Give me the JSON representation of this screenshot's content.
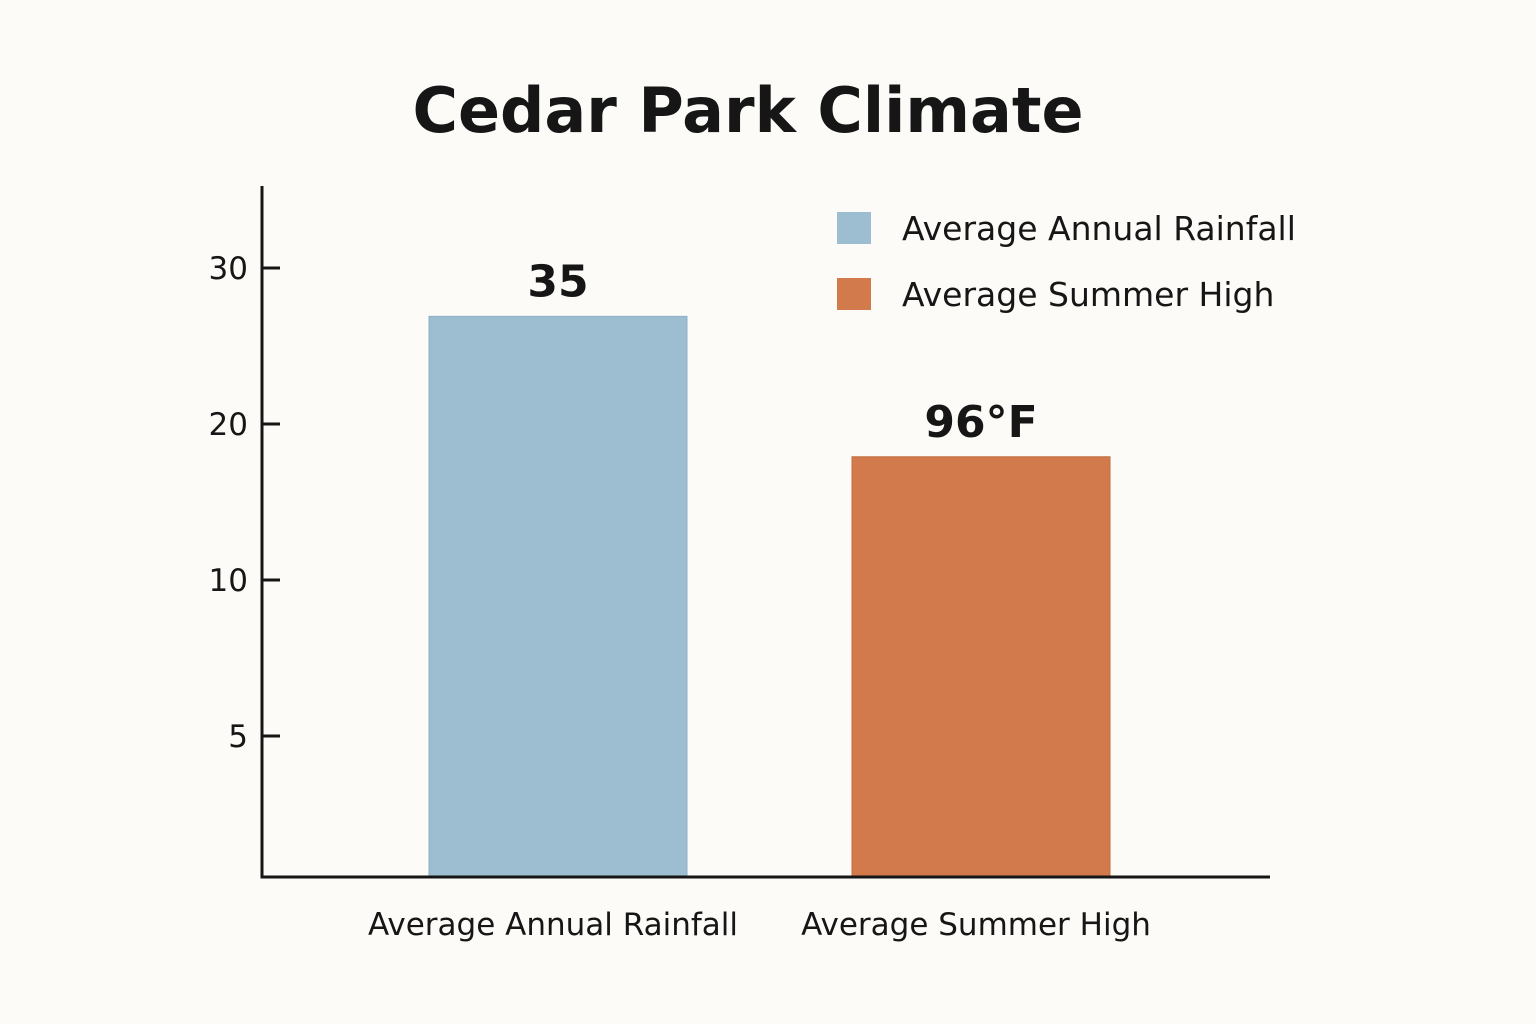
{
  "chart_data": {
    "type": "bar",
    "title": "Cedar Park Climate",
    "xlabel": "",
    "ylabel": "",
    "categories": [
      "Average Annual Rainfall",
      "Average Summer High"
    ],
    "series": [
      {
        "name": "Average Annual Rainfall",
        "color": "#9dbdd0",
        "values": [
          35,
          null
        ],
        "labels": [
          "35",
          null
        ]
      },
      {
        "name": "Average Summer High",
        "color": "#d27a4c",
        "values": [
          null,
          96
        ],
        "labels": [
          null,
          "96°F"
        ]
      }
    ],
    "rendered_levels_on_axis": [
      26.9,
      17.9
    ],
    "y_ticks": [
      5,
      10,
      20,
      30
    ],
    "ylim": [
      0,
      35
    ],
    "grid": false,
    "legend": {
      "position": "top-right",
      "entries": [
        "Average Annual Rainfall",
        "Average Summer High"
      ]
    }
  }
}
